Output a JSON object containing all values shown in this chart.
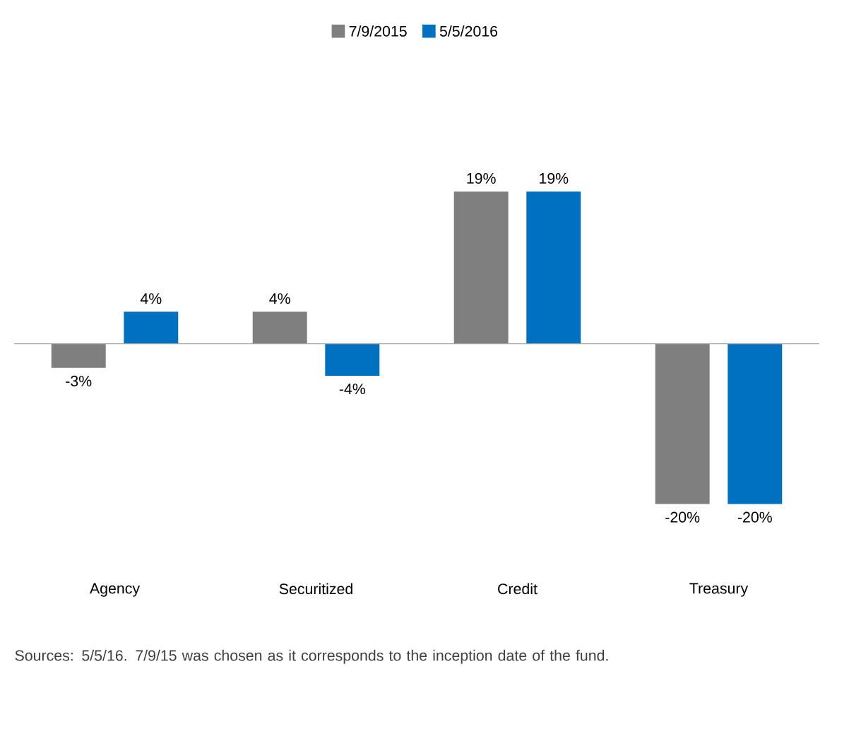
{
  "chart_data": {
    "type": "bar",
    "categories": [
      "Agency",
      "Securitized",
      "Credit",
      "Treasury"
    ],
    "series": [
      {
        "name": "7/9/2015",
        "color": "#7f7f7f",
        "values": [
          -3,
          4,
          19,
          -20
        ],
        "value_labels": [
          "-3%",
          "4%",
          "19%",
          "-20%"
        ]
      },
      {
        "name": "5/5/2016",
        "color": "#0070c0",
        "values": [
          4,
          -4,
          19,
          -20
        ],
        "value_labels": [
          "4%",
          "-4%",
          "19%",
          "-20%"
        ]
      }
    ],
    "legend": "top",
    "annotations": [
      "Sources: 5/5/16. 7/9/15 was chosen as it corresponds to the inception date of the fund."
    ]
  }
}
